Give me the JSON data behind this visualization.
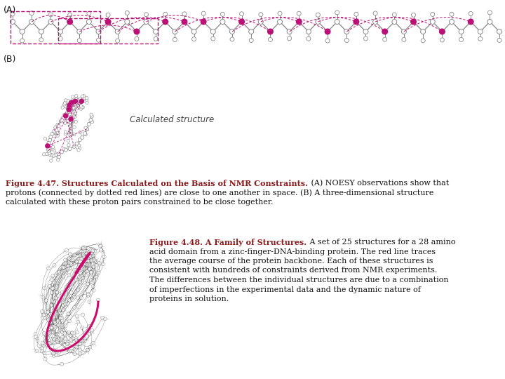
{
  "background_color": "#ffffff",
  "fig_width": 7.2,
  "fig_height": 5.4,
  "dpi": 100,
  "label_A": "(A)",
  "label_B": "(B)",
  "label_fontsize": 9,
  "caption1_bold": "Figure 4.47. Structures Calculated on the Basis of NMR Constraints.",
  "caption1_rest": " (A) NOESY observations show that",
  "caption1_line2": "protons (connected by dotted red lines) are close to one another in space. (B) A three-dimensional structure",
  "caption1_line3": "calculated with these proton pairs constrained to be close together.",
  "caption1_fontsize": 8.0,
  "caption1_bold_color": "#8B1A1A",
  "caption1_normal_color": "#111111",
  "caption2_bold": "Figure 4.48. A Family of Structures.",
  "caption2_rest": " A set of 25 structures for a 28 amino",
  "caption2_lines": [
    "acid domain from a zinc-finger-DNA-binding protein. The red line traces",
    "the average course of the protein backbone. Each of these structures is",
    "consistent with hundreds of constraints derived from NMR experiments.",
    "The differences between the individual structures are due to a combination",
    "of imperfections in the experimental data and the dynamic nature of",
    "proteins in solution."
  ],
  "caption2_fontsize": 8.0,
  "caption2_bold_color": "#8B1A1A",
  "caption2_normal_color": "#111111",
  "calc_structure_text": "Calculated structure",
  "calc_structure_fontsize": 8.5,
  "noesy_color": "#BB1177",
  "chain_color": "#888888",
  "backbone48_color": "#CC0066",
  "chain48_color": "#111111"
}
